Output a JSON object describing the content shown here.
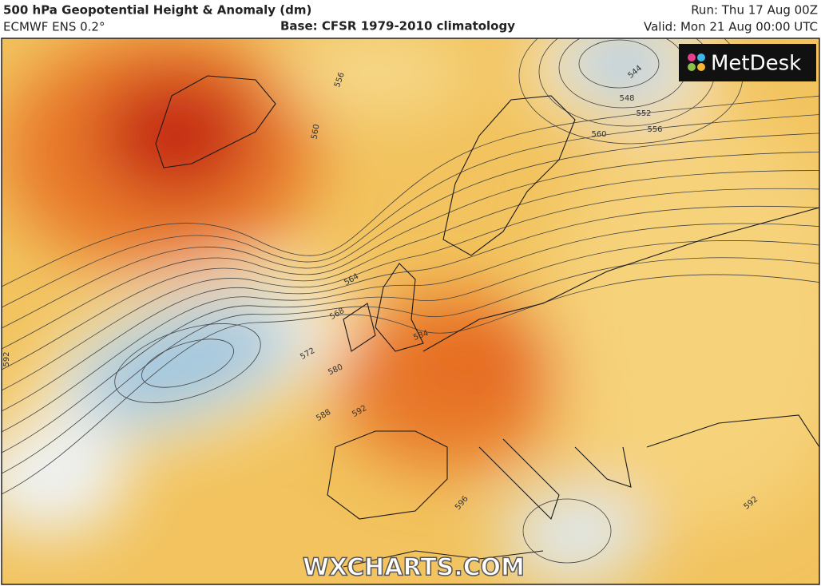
{
  "header": {
    "title": "500 hPa Geopotential Height & Anomaly (dm)",
    "model": "ECMWF ENS 0.2°",
    "base": "Base: CFSR 1979-2010 climatology",
    "run": "Run: Thu 17 Aug 00Z",
    "valid": "Valid: Mon 21 Aug 00:00 UTC"
  },
  "logo": "MetDesk",
  "watermark": "WXCHARTS.COM",
  "contour_labels": [
    544,
    548,
    552,
    556,
    556,
    560,
    560,
    564,
    568,
    572,
    580,
    584,
    588,
    592,
    592,
    592,
    596
  ]
}
